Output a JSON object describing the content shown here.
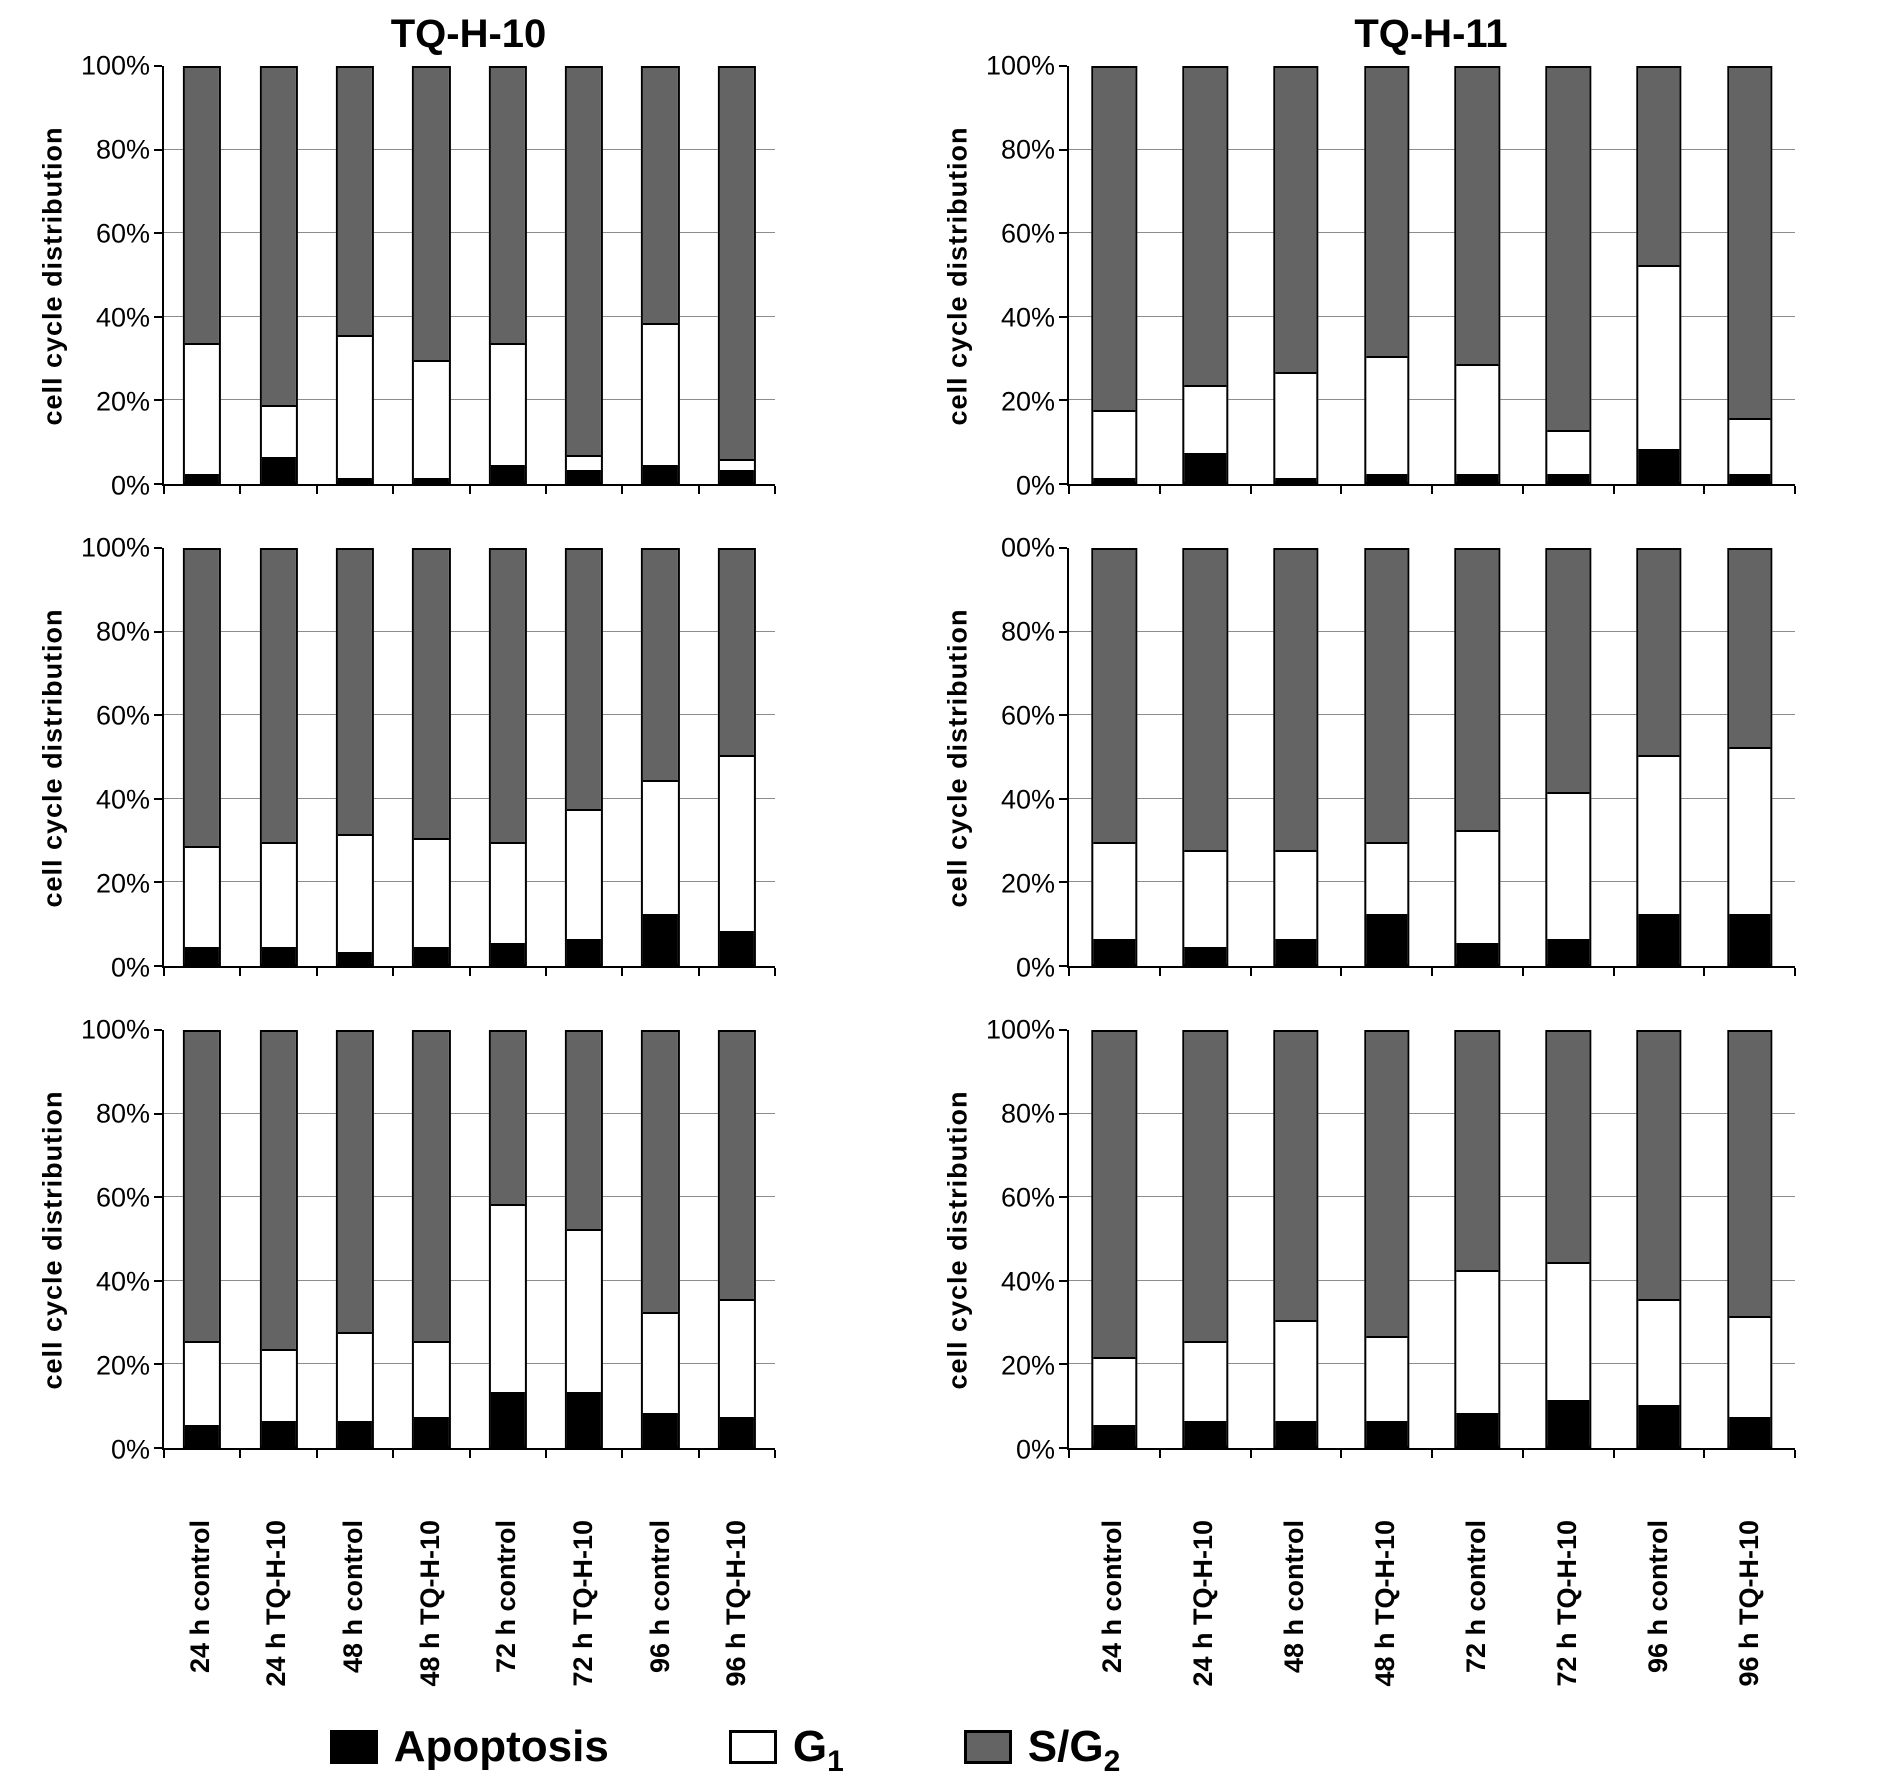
{
  "figure": {
    "column_titles": {
      "left": "TQ-H-10",
      "right": "TQ-H-11"
    },
    "y_axis_label": "cell cycle distribution"
  },
  "categories": [
    "24 h control",
    "24 h TQ-H-10",
    "48 h control",
    "48 h TQ-H-10",
    "72 h control",
    "72 h TQ-H-10",
    "96 h control",
    "96 h TQ-H-10"
  ],
  "colors": {
    "apoptosis": "#000000",
    "g1": "#ffffff",
    "sg2": "#646464",
    "gridline": "#8c8c8c",
    "axis": "#000000"
  },
  "legend": {
    "items": [
      {
        "label": "Apoptosis",
        "sub": "",
        "color_key": "apoptosis"
      },
      {
        "label": "G",
        "sub": "1",
        "color_key": "g1"
      },
      {
        "label": "S/G",
        "sub": "2",
        "color_key": "sg2"
      }
    ]
  },
  "chart_data": [
    {
      "type": "bar",
      "stacked": true,
      "group": "TQ-H-10",
      "row": 1,
      "ylabel": "cell cycle distribution",
      "ylim": [
        0,
        100
      ],
      "grid": true,
      "yticks": [
        "100%",
        "80%",
        "60%",
        "40%",
        "20%",
        "0%"
      ],
      "categories": [
        "24 h control",
        "24 h TQ-H-10",
        "48 h control",
        "48 h TQ-H-10",
        "72 h control",
        "72 h TQ-H-10",
        "96 h control",
        "96 h TQ-H-10"
      ],
      "series": [
        {
          "name": "Apoptosis",
          "values": [
            2,
            6,
            1,
            1,
            4,
            3,
            4,
            3
          ]
        },
        {
          "name": "G1",
          "values": [
            31,
            12,
            34,
            28,
            29,
            3,
            34,
            2
          ]
        },
        {
          "name": "S/G2",
          "values": [
            67,
            82,
            65,
            71,
            67,
            94,
            62,
            95
          ]
        }
      ]
    },
    {
      "type": "bar",
      "stacked": true,
      "group": "TQ-H-11",
      "row": 1,
      "ylabel": "cell cycle distribution",
      "ylim": [
        0,
        100
      ],
      "grid": true,
      "yticks": [
        "100%",
        "80%",
        "60%",
        "40%",
        "20%",
        "0%"
      ],
      "categories": [
        "24 h control",
        "24 h TQ-H-10",
        "48 h control",
        "48 h TQ-H-10",
        "72 h control",
        "72 h TQ-H-10",
        "96 h control",
        "96 h TQ-H-10"
      ],
      "series": [
        {
          "name": "Apoptosis",
          "values": [
            1,
            7,
            1,
            2,
            2,
            2,
            8,
            2
          ]
        },
        {
          "name": "G1",
          "values": [
            16,
            16,
            25,
            28,
            26,
            10,
            44,
            13
          ]
        },
        {
          "name": "S/G2",
          "values": [
            83,
            77,
            74,
            70,
            72,
            88,
            48,
            85
          ]
        }
      ]
    },
    {
      "type": "bar",
      "stacked": true,
      "group": "TQ-H-10",
      "row": 2,
      "ylabel": "cell cycle distribution",
      "ylim": [
        0,
        100
      ],
      "grid": true,
      "yticks": [
        "100%",
        "80%",
        "60%",
        "40%",
        "20%",
        "0%"
      ],
      "categories": [
        "24 h control",
        "24 h TQ-H-10",
        "48 h control",
        "48 h TQ-H-10",
        "72 h control",
        "72 h TQ-H-10",
        "96 h control",
        "96 h TQ-H-10"
      ],
      "series": [
        {
          "name": "Apoptosis",
          "values": [
            4,
            4,
            3,
            4,
            5,
            6,
            12,
            8
          ]
        },
        {
          "name": "G1",
          "values": [
            24,
            25,
            28,
            26,
            24,
            31,
            32,
            42
          ]
        },
        {
          "name": "S/G2",
          "values": [
            72,
            71,
            69,
            70,
            71,
            63,
            56,
            50
          ]
        }
      ]
    },
    {
      "type": "bar",
      "stacked": true,
      "group": "TQ-H-11",
      "row": 2,
      "ylabel": "cell cycle distribution",
      "ylim": [
        0,
        100
      ],
      "grid": true,
      "yticks": [
        "00%",
        "80%",
        "60%",
        "40%",
        "20%",
        "0%"
      ],
      "categories": [
        "24 h control",
        "24 h TQ-H-10",
        "48 h control",
        "48 h TQ-H-10",
        "72 h control",
        "72 h TQ-H-10",
        "96 h control",
        "96 h TQ-H-10"
      ],
      "series": [
        {
          "name": "Apoptosis",
          "values": [
            6,
            4,
            6,
            12,
            5,
            6,
            12,
            12
          ]
        },
        {
          "name": "G1",
          "values": [
            23,
            23,
            21,
            17,
            27,
            35,
            38,
            40
          ]
        },
        {
          "name": "S/G2",
          "values": [
            71,
            73,
            73,
            71,
            68,
            59,
            50,
            48
          ]
        }
      ]
    },
    {
      "type": "bar",
      "stacked": true,
      "group": "TQ-H-10",
      "row": 3,
      "ylabel": "cell cycle distribution",
      "ylim": [
        0,
        100
      ],
      "grid": true,
      "yticks": [
        "100%",
        "80%",
        "60%",
        "40%",
        "20%",
        "0%"
      ],
      "categories": [
        "24 h control",
        "24 h TQ-H-10",
        "48 h control",
        "48 h TQ-H-10",
        "72 h control",
        "72 h TQ-H-10",
        "96 h control",
        "96 h TQ-H-10"
      ],
      "series": [
        {
          "name": "Apoptosis",
          "values": [
            5,
            6,
            6,
            7,
            13,
            13,
            8,
            7
          ]
        },
        {
          "name": "G1",
          "values": [
            20,
            17,
            21,
            18,
            45,
            39,
            24,
            28
          ]
        },
        {
          "name": "S/G2",
          "values": [
            75,
            77,
            73,
            75,
            42,
            48,
            68,
            65
          ]
        }
      ]
    },
    {
      "type": "bar",
      "stacked": true,
      "group": "TQ-H-11",
      "row": 3,
      "ylabel": "cell cycle distribution",
      "ylim": [
        0,
        100
      ],
      "grid": true,
      "yticks": [
        "100%",
        "80%",
        "60%",
        "40%",
        "20%",
        "0%"
      ],
      "categories": [
        "24 h control",
        "24 h TQ-H-10",
        "48 h control",
        "48 h TQ-H-10",
        "72 h control",
        "72 h TQ-H-10",
        "96 h control",
        "96 h TQ-H-10"
      ],
      "series": [
        {
          "name": "Apoptosis",
          "values": [
            5,
            6,
            6,
            6,
            8,
            11,
            10,
            7
          ]
        },
        {
          "name": "G1",
          "values": [
            16,
            19,
            24,
            20,
            34,
            33,
            25,
            24
          ]
        },
        {
          "name": "S/G2",
          "values": [
            79,
            75,
            70,
            74,
            58,
            56,
            65,
            69
          ]
        }
      ]
    }
  ]
}
